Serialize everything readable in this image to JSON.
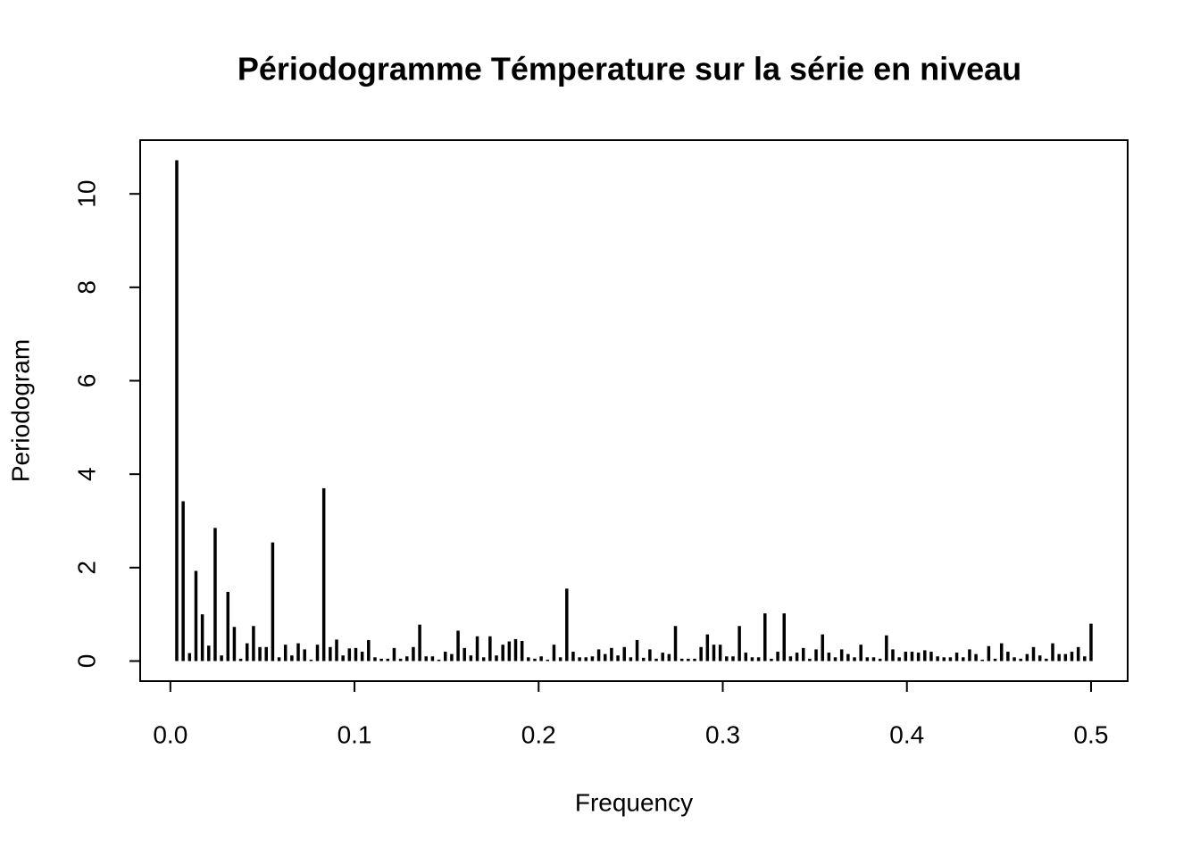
{
  "chart_data": {
    "type": "stem",
    "title": "Périodogramme Témperature sur la série en niveau",
    "xlabel": "Frequency",
    "ylabel": "Periodogram",
    "color": "#000000",
    "x": [
      0.00347,
      0.00694,
      0.01042,
      0.01389,
      0.01736,
      0.02083,
      0.02431,
      0.02778,
      0.03125,
      0.03472,
      0.03819,
      0.04167,
      0.04514,
      0.04861,
      0.05208,
      0.05556,
      0.05903,
      0.0625,
      0.06597,
      0.06944,
      0.07292,
      0.07639,
      0.07986,
      0.08333,
      0.08681,
      0.09028,
      0.09375,
      0.09722,
      0.10069,
      0.10417,
      0.10764,
      0.11111,
      0.11458,
      0.11806,
      0.12153,
      0.125,
      0.12847,
      0.13194,
      0.13542,
      0.13889,
      0.14236,
      0.14583,
      0.14931,
      0.15278,
      0.15625,
      0.15972,
      0.16319,
      0.16667,
      0.17014,
      0.17361,
      0.17708,
      0.18056,
      0.18403,
      0.1875,
      0.19097,
      0.19444,
      0.19792,
      0.20139,
      0.20486,
      0.20833,
      0.21181,
      0.21528,
      0.21875,
      0.22222,
      0.22569,
      0.22917,
      0.23264,
      0.23611,
      0.23958,
      0.24306,
      0.24653,
      0.25,
      0.25347,
      0.25694,
      0.26042,
      0.26389,
      0.26736,
      0.27083,
      0.27431,
      0.27778,
      0.28125,
      0.28472,
      0.28819,
      0.29167,
      0.29514,
      0.29861,
      0.30208,
      0.30556,
      0.30903,
      0.3125,
      0.31597,
      0.31944,
      0.32292,
      0.32639,
      0.32986,
      0.33333,
      0.33681,
      0.34028,
      0.34375,
      0.34722,
      0.35069,
      0.35417,
      0.35764,
      0.36111,
      0.36458,
      0.36806,
      0.37153,
      0.375,
      0.37847,
      0.38194,
      0.38542,
      0.38889,
      0.39236,
      0.39583,
      0.39931,
      0.40278,
      0.40625,
      0.40972,
      0.41319,
      0.41667,
      0.42014,
      0.42361,
      0.42708,
      0.43056,
      0.43403,
      0.4375,
      0.44097,
      0.44444,
      0.44792,
      0.45139,
      0.45486,
      0.45833,
      0.46181,
      0.46528,
      0.46875,
      0.47222,
      0.47569,
      0.47917,
      0.48264,
      0.48611,
      0.48958,
      0.49306,
      0.49653,
      0.5
    ],
    "values": [
      10.72,
      3.42,
      0.17,
      1.93,
      1.0,
      0.33,
      2.85,
      0.12,
      1.48,
      0.73,
      0.05,
      0.38,
      0.75,
      0.3,
      0.3,
      2.54,
      0.08,
      0.35,
      0.12,
      0.38,
      0.25,
      0.03,
      0.35,
      3.7,
      0.3,
      0.46,
      0.12,
      0.27,
      0.28,
      0.2,
      0.45,
      0.08,
      0.05,
      0.05,
      0.28,
      0.05,
      0.1,
      0.3,
      0.78,
      0.1,
      0.1,
      0.03,
      0.2,
      0.15,
      0.65,
      0.28,
      0.12,
      0.53,
      0.08,
      0.53,
      0.12,
      0.35,
      0.42,
      0.47,
      0.43,
      0.08,
      0.05,
      0.1,
      0.03,
      0.35,
      0.08,
      1.55,
      0.2,
      0.08,
      0.08,
      0.1,
      0.25,
      0.15,
      0.28,
      0.12,
      0.3,
      0.08,
      0.45,
      0.07,
      0.25,
      0.05,
      0.18,
      0.15,
      0.75,
      0.05,
      0.05,
      0.05,
      0.3,
      0.57,
      0.35,
      0.35,
      0.1,
      0.1,
      0.75,
      0.18,
      0.08,
      0.08,
      1.02,
      0.05,
      0.2,
      1.02,
      0.1,
      0.18,
      0.28,
      0.05,
      0.25,
      0.57,
      0.18,
      0.08,
      0.25,
      0.15,
      0.08,
      0.35,
      0.08,
      0.08,
      0.05,
      0.55,
      0.25,
      0.08,
      0.2,
      0.2,
      0.18,
      0.23,
      0.2,
      0.1,
      0.08,
      0.08,
      0.18,
      0.08,
      0.25,
      0.15,
      0.03,
      0.32,
      0.05,
      0.38,
      0.2,
      0.08,
      0.05,
      0.15,
      0.3,
      0.12,
      0.05,
      0.38,
      0.15,
      0.15,
      0.2,
      0.3,
      0.1,
      0.8
    ],
    "xlim": [
      -0.0164,
      0.5199
    ],
    "ylim": [
      -0.43,
      11.15
    ],
    "xticks": [
      {
        "value": 0,
        "label": "0.0"
      },
      {
        "value": 0.1,
        "label": "0.1"
      },
      {
        "value": 0.2,
        "label": "0.2"
      },
      {
        "value": 0.3,
        "label": "0.3"
      },
      {
        "value": 0.4,
        "label": "0.4"
      },
      {
        "value": 0.5,
        "label": "0.5"
      }
    ],
    "yticks": [
      0,
      2,
      4,
      6,
      8,
      10
    ]
  }
}
